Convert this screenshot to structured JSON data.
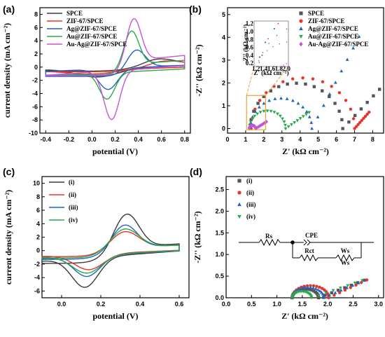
{
  "chart_data": [
    {
      "panel": "(a)",
      "type": "line",
      "xlabel": "potential (V)",
      "ylabel": "current density (mA cm⁻²)",
      "xlim": [
        -0.45,
        0.85
      ],
      "ylim": [
        -10,
        9
      ],
      "xticks": [
        -0.4,
        -0.2,
        0.0,
        0.2,
        0.4,
        0.6,
        0.8
      ],
      "yticks": [
        -10,
        -8,
        -6,
        -4,
        -2,
        0,
        2,
        4,
        6,
        8
      ],
      "legend_position": "top-left",
      "series": [
        {
          "name": "SPCE",
          "color": "#3a3a3a",
          "ipa": 1.0,
          "ipc": -1.5,
          "epa": 0.55,
          "epc": 0.05,
          "base_fwd": -0.6,
          "base_rev": -0.1,
          "slope": 1.6,
          "width": 0.24
        },
        {
          "name": "ZIF-67/SPCE",
          "color": "#e8332a",
          "ipa": 0.7,
          "ipc": -1.0,
          "epa": 0.6,
          "epc": 0.0,
          "base_fwd": -0.7,
          "base_rev": -0.3,
          "slope": 1.5,
          "width": 0.28
        },
        {
          "name": "Ag@ZIF-67/SPCE",
          "color": "#1f64c0",
          "ipa": 2.4,
          "ipc": -3.5,
          "epa": 0.38,
          "epc": 0.14,
          "base_fwd": -1.4,
          "base_rev": -0.2,
          "slope": 2.6,
          "width": 0.11
        },
        {
          "name": "Au@ZIF-67/SPCE",
          "color": "#2aa84a",
          "ipa": 5.5,
          "ipc": -5.0,
          "epa": 0.34,
          "epc": 0.13,
          "base_fwd": -1.2,
          "base_rev": -0.8,
          "slope": 3.0,
          "width": 0.09
        },
        {
          "name": "Au-Ag@ZIF-67/SPCE",
          "color": "#c455d6",
          "ipa": 7.3,
          "ipc": -8.3,
          "epa": 0.36,
          "epc": 0.17,
          "base_fwd": -1.3,
          "base_rev": -0.5,
          "slope": 4.2,
          "width": 0.09
        }
      ]
    },
    {
      "panel": "(b)",
      "type": "scatter",
      "xlabel": "Z' (kΩ cm⁻²)",
      "ylabel": "-Z'' (kΩ cm⁻²)",
      "xlim": [
        0,
        8.6
      ],
      "ylim": [
        -0.2,
        5.3
      ],
      "xticks": [
        0,
        1,
        2,
        3,
        4,
        5,
        6,
        7,
        8
      ],
      "yticks": [
        0,
        1,
        2,
        3,
        4,
        5
      ],
      "legend_position": "top-right",
      "series": [
        {
          "name": "SPCE",
          "color": "#555555",
          "marker": "square",
          "rs": 1.25,
          "rct": 5.1,
          "tail_slope": 0.85,
          "tail_len": 2.7
        },
        {
          "name": "ZIF-67/SPCE",
          "color": "#e8332a",
          "marker": "circle",
          "rs": 1.3,
          "rct": 5.7,
          "tail_slope": 0.9,
          "tail_len": 0.8
        },
        {
          "name": "Ag@ZIF-67/SPCE",
          "color": "#1f64c0",
          "marker": "triangle-up",
          "rs": 1.25,
          "rct": 3.4,
          "tail_slope": 1.55,
          "tail_len": 2.6
        },
        {
          "name": "Au@ZIF-67/SPCE",
          "color": "#2aa84a",
          "marker": "triangle-down",
          "rs": 1.2,
          "rct": 2.0,
          "tail_slope": 0.55,
          "tail_len": 1.3
        },
        {
          "name": "Au-Ag@ZIF-67/SPCE",
          "color": "#c455d6",
          "marker": "diamond",
          "rs": 1.2,
          "rct": 0.35,
          "tail_slope": 0.5,
          "tail_len": 0.6
        }
      ],
      "inset": {
        "xlabel": "Z' (kΩ cm⁻²)",
        "ylabel": "-Z'' (kΩ cm⁻²)",
        "xlim": [
          1.15,
          2.05
        ],
        "ylim": [
          0.15,
          1.3
        ],
        "xticks": [
          1.2,
          1.4,
          1.6,
          1.8,
          2.0
        ],
        "yticks": [
          0.2,
          0.4,
          0.6,
          0.8,
          1.0,
          1.2
        ]
      }
    },
    {
      "panel": "(c)",
      "type": "line",
      "xlabel": "potential (V)",
      "ylabel": "current density (mA cm⁻²)",
      "xlim": [
        -0.1,
        0.65
      ],
      "ylim": [
        -7,
        11
      ],
      "xticks": [
        0.0,
        0.2,
        0.4,
        0.6
      ],
      "yticks": [
        -6,
        -4,
        -2,
        0,
        2,
        4,
        6,
        8,
        10
      ],
      "legend_position": "top-left",
      "series": [
        {
          "name": "(i)",
          "color": "#3a3a3a",
          "ipa": 5.2,
          "ipc": -5.4,
          "epa": 0.33,
          "epc": 0.12,
          "base_fwd": -1.9,
          "base_rev": -0.8,
          "slope": 4.3,
          "width": 0.09
        },
        {
          "name": "(ii)",
          "color": "#e8332a",
          "ipa": 2.6,
          "ipc": -2.8,
          "epa": 0.32,
          "epc": 0.14,
          "base_fwd": -0.9,
          "base_rev": -0.4,
          "slope": 2.6,
          "width": 0.1
        },
        {
          "name": "(iii)",
          "color": "#1f64c0",
          "ipa": 3.6,
          "ipc": -3.8,
          "epa": 0.32,
          "epc": 0.13,
          "base_fwd": -1.3,
          "base_rev": -0.6,
          "slope": 3.2,
          "width": 0.09
        },
        {
          "name": "(iv)",
          "color": "#2aa84a",
          "ipa": 3.0,
          "ipc": -3.3,
          "epa": 0.32,
          "epc": 0.13,
          "base_fwd": -1.1,
          "base_rev": -0.5,
          "slope": 2.9,
          "width": 0.1
        }
      ]
    },
    {
      "panel": "(d)",
      "type": "scatter",
      "xlabel": "Z' (kΩ cm⁻²)",
      "ylabel": "-Z'' (kΩ cm⁻²)",
      "xlim": [
        0,
        3.1
      ],
      "ylim": [
        0,
        2.8
      ],
      "xticks": [
        0.0,
        0.5,
        1.0,
        1.5,
        2.0,
        2.5,
        3.0
      ],
      "yticks": [
        0.0,
        0.5,
        1.0,
        1.5,
        2.0,
        2.5
      ],
      "legend_position": "top-left",
      "series": [
        {
          "name": "(i)",
          "color": "#555555",
          "marker": "square",
          "rs": 1.3,
          "rct": 0.52,
          "tail_slope": 0.45,
          "tail_len": 0.9
        },
        {
          "name": "(ii)",
          "color": "#e8332a",
          "marker": "circle",
          "rs": 1.3,
          "rct": 0.72,
          "tail_slope": 0.55,
          "tail_len": 0.75
        },
        {
          "name": "(iii)",
          "color": "#1f64c0",
          "marker": "triangle-up",
          "rs": 1.3,
          "rct": 0.62,
          "tail_slope": 0.5,
          "tail_len": 0.8
        },
        {
          "name": "(iv)",
          "color": "#2aa84a",
          "marker": "triangle-down",
          "rs": 1.3,
          "rct": 0.38,
          "tail_slope": 0.4,
          "tail_len": 1.0
        }
      ],
      "circuit_labels": {
        "rs": "Rs",
        "cpe": "CPE",
        "rct": "Rct",
        "ws_top": "Ws",
        "ws_bottom": "Ws"
      }
    }
  ]
}
